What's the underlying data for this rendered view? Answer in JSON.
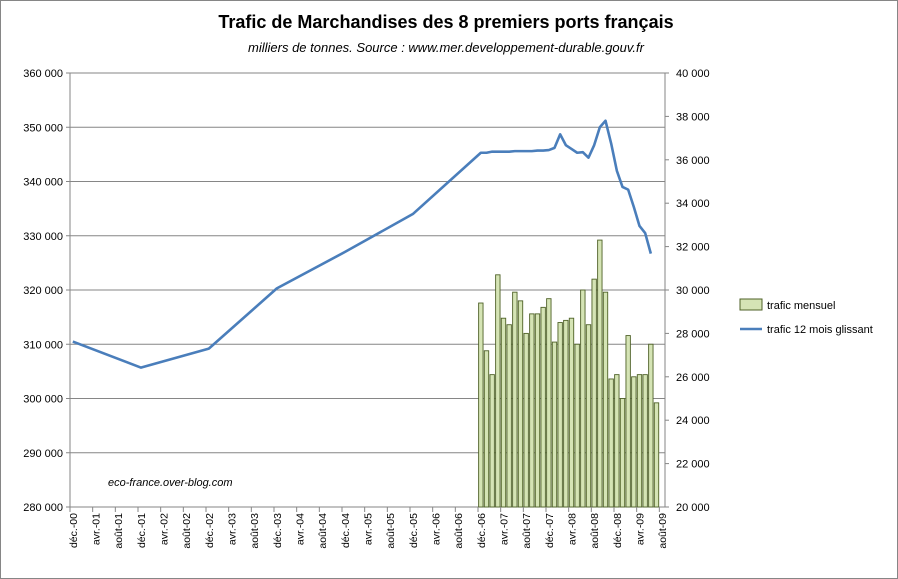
{
  "chart_data": {
    "type": "bar+line",
    "title": "Trafic de Marchandises  des 8 premiers ports français",
    "subtitle": "milliers de tonnes. Source : www.mer.developpement-durable.gouv.fr",
    "watermark": "eco-france.over-blog.com",
    "x_labels": [
      "déc.-00",
      "avr.-01",
      "août-01",
      "déc.-01",
      "avr.-02",
      "août-02",
      "déc.-02",
      "avr.-03",
      "août-03",
      "déc.-03",
      "avr.-04",
      "août-04",
      "déc.-04",
      "avr.-05",
      "août-05",
      "déc.-05",
      "avr.-06",
      "août-06",
      "déc.-06",
      "avr.-07",
      "août-07",
      "déc.-07",
      "avr.-08",
      "août-08",
      "déc.-08",
      "avr.-09",
      "août-09"
    ],
    "y_left": {
      "range": [
        280000,
        360000
      ],
      "step": 10000,
      "ticks": [
        "280 000",
        "290 000",
        "300 000",
        "310 000",
        "320 000",
        "330 000",
        "340 000",
        "350 000",
        "360 000"
      ]
    },
    "y_right": {
      "range": [
        20000,
        40000
      ],
      "step": 2000,
      "ticks": [
        "20 000",
        "22 000",
        "24 000",
        "26 000",
        "28 000",
        "30 000",
        "32 000",
        "34 000",
        "36 000",
        "38 000",
        "40 000"
      ]
    },
    "grid": true,
    "legend": {
      "position": "right"
    },
    "series": [
      {
        "name": "trafic mensuel",
        "type": "bar",
        "axis": "right",
        "color": "#d5e4b5",
        "border": "#4f6228",
        "start_month_index": 72,
        "values": [
          29400,
          27200,
          26100,
          30700,
          28700,
          28400,
          29900,
          29500,
          28000,
          28900,
          28900,
          29200,
          29600,
          27600,
          28500,
          28600,
          28700,
          27500,
          30000,
          28400,
          30500,
          32300,
          29900,
          25900,
          26100,
          25000,
          27900,
          26000,
          26100,
          26100,
          27500,
          24800
        ]
      },
      {
        "name": "trafic 12 mois glissant",
        "type": "line",
        "axis": "left",
        "color": "#4a7ebb",
        "points": [
          {
            "m": 0,
            "y": 310500
          },
          {
            "m": 12,
            "y": 305700
          },
          {
            "m": 24,
            "y": 309200
          },
          {
            "m": 36,
            "y": 320300
          },
          {
            "m": 48,
            "y": 327000
          },
          {
            "m": 60,
            "y": 334000
          },
          {
            "m": 72,
            "y": 345300
          },
          {
            "m": 73,
            "y": 345300
          },
          {
            "m": 74,
            "y": 345500
          },
          {
            "m": 75,
            "y": 345500
          },
          {
            "m": 76,
            "y": 345500
          },
          {
            "m": 77,
            "y": 345500
          },
          {
            "m": 78,
            "y": 345600
          },
          {
            "m": 79,
            "y": 345600
          },
          {
            "m": 80,
            "y": 345600
          },
          {
            "m": 81,
            "y": 345600
          },
          {
            "m": 82,
            "y": 345700
          },
          {
            "m": 83,
            "y": 345700
          },
          {
            "m": 84,
            "y": 345800
          },
          {
            "m": 85,
            "y": 346200
          },
          {
            "m": 86,
            "y": 348700
          },
          {
            "m": 87,
            "y": 346700
          },
          {
            "m": 88,
            "y": 346000
          },
          {
            "m": 89,
            "y": 345300
          },
          {
            "m": 90,
            "y": 345400
          },
          {
            "m": 91,
            "y": 344400
          },
          {
            "m": 92,
            "y": 346700
          },
          {
            "m": 93,
            "y": 350000
          },
          {
            "m": 94,
            "y": 351200
          },
          {
            "m": 95,
            "y": 347000
          },
          {
            "m": 96,
            "y": 342000
          },
          {
            "m": 97,
            "y": 339000
          },
          {
            "m": 98,
            "y": 338500
          },
          {
            "m": 99,
            "y": 335300
          },
          {
            "m": 100,
            "y": 331800
          },
          {
            "m": 101,
            "y": 330500
          },
          {
            "m": 102,
            "y": 326700
          }
        ]
      }
    ]
  }
}
